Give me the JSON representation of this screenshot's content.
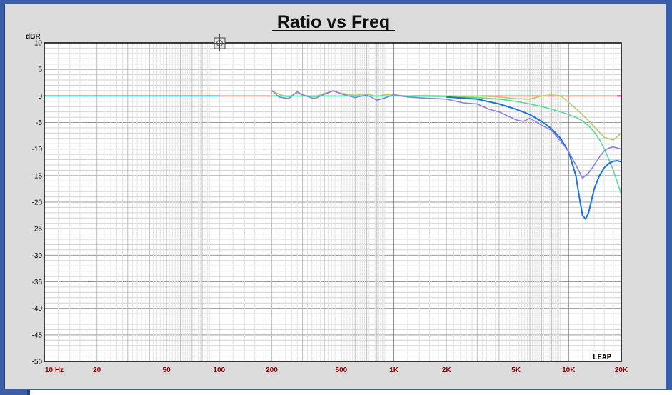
{
  "chart_data": {
    "type": "line",
    "title": "Ratio vs Freq",
    "ylabel": "dBR",
    "xlabel": "",
    "xscale": "log",
    "xlim": [
      10,
      20000
    ],
    "ylim": [
      -50,
      10
    ],
    "y_ticks": [
      10,
      5,
      0,
      -5,
      -10,
      -15,
      -20,
      -25,
      -30,
      -35,
      -40,
      -45,
      -50
    ],
    "y_tick_labels": [
      "10",
      "5",
      "0",
      "-5",
      "-10",
      "-15",
      "-20",
      "-25",
      "-30",
      "-35",
      "-40",
      "-45",
      "-50"
    ],
    "x_ticks": [
      10,
      20,
      50,
      100,
      200,
      500,
      1000,
      2000,
      5000,
      10000,
      20000
    ],
    "x_tick_labels": [
      "10  Hz",
      "20",
      "50",
      "100",
      "200",
      "500",
      "1K",
      "2K",
      "5K",
      "10K",
      "20K"
    ],
    "grid": true,
    "logo": "LEAP",
    "series": [
      {
        "color": "#e07a7a",
        "x": [
          10,
          20000
        ],
        "y": [
          0,
          0
        ]
      },
      {
        "color": "#1f8fbf",
        "x": [
          10,
          100
        ],
        "y": [
          0,
          0
        ]
      },
      {
        "color": "#b3cf6a",
        "x": [
          200,
          220,
          250,
          280,
          300,
          350,
          400,
          450,
          500,
          600,
          700,
          800,
          900,
          1000,
          1200,
          1500,
          2000,
          3000,
          4000,
          5000,
          6000,
          7000,
          8000,
          9000,
          10000,
          12000,
          14000,
          16000,
          18000,
          20000
        ],
        "y": [
          1,
          0.3,
          -0.2,
          0.6,
          0.2,
          -0.2,
          0.5,
          0.9,
          0.5,
          0.1,
          0.4,
          -0.1,
          0.3,
          0.2,
          0,
          0.1,
          0,
          0,
          -0.2,
          -0.5,
          -0.6,
          0,
          0.2,
          0,
          -1.2,
          -3.5,
          -5.8,
          -7.8,
          -8.3,
          -7
        ]
      },
      {
        "color": "#5cd6a0",
        "x": [
          200,
          500,
          1000,
          2000,
          3000,
          4000,
          5000,
          6000,
          7000,
          8000,
          9000,
          10000,
          11000,
          12000,
          13000,
          14000,
          15000,
          16000,
          17000,
          18000,
          19000,
          20000
        ],
        "y": [
          0,
          0,
          0,
          -0.1,
          -0.3,
          -0.6,
          -1,
          -1.5,
          -2,
          -2.5,
          -3,
          -3.5,
          -4,
          -4.7,
          -5.6,
          -6.8,
          -8.2,
          -10,
          -12,
          -14,
          -16.3,
          -18.5
        ]
      },
      {
        "color": "#1a73d6",
        "x": [
          2000,
          3000,
          4000,
          5000,
          6000,
          7000,
          8000,
          9000,
          10000,
          11000,
          11500,
          12000,
          12500,
          13000,
          14000,
          15000,
          16000,
          17000,
          18000,
          19000,
          20000
        ],
        "y": [
          -0.2,
          -0.6,
          -1.5,
          -2.5,
          -3.5,
          -4.8,
          -6.2,
          -8,
          -10.5,
          -15,
          -19,
          -22.5,
          -23.2,
          -22,
          -17.5,
          -15,
          -13.5,
          -12.7,
          -12.3,
          -12.2,
          -12.4
        ]
      },
      {
        "color": "#8b7fe6",
        "x": [
          200,
          220,
          250,
          280,
          300,
          350,
          400,
          450,
          500,
          600,
          700,
          800,
          900,
          1000,
          1200,
          1500,
          2000,
          2500,
          3000,
          3500,
          4000,
          5000,
          5500,
          6000,
          7000,
          8000,
          9000,
          10000,
          11000,
          12000,
          13000,
          14000,
          15000,
          16000,
          17000,
          18000,
          19000,
          20000
        ],
        "y": [
          1,
          -0.2,
          -0.5,
          0.8,
          0.2,
          -0.5,
          0.3,
          1,
          0.4,
          -0.3,
          0.2,
          -0.8,
          -0.3,
          0.2,
          -0.2,
          -0.4,
          -0.6,
          -1.3,
          -1.5,
          -2.5,
          -3,
          -4.5,
          -4.8,
          -4.2,
          -5.5,
          -6.5,
          -8.5,
          -10.5,
          -13,
          -15.5,
          -14.5,
          -13,
          -11.5,
          -10.3,
          -9.8,
          -9.6,
          -9.8,
          -10
        ]
      }
    ]
  }
}
